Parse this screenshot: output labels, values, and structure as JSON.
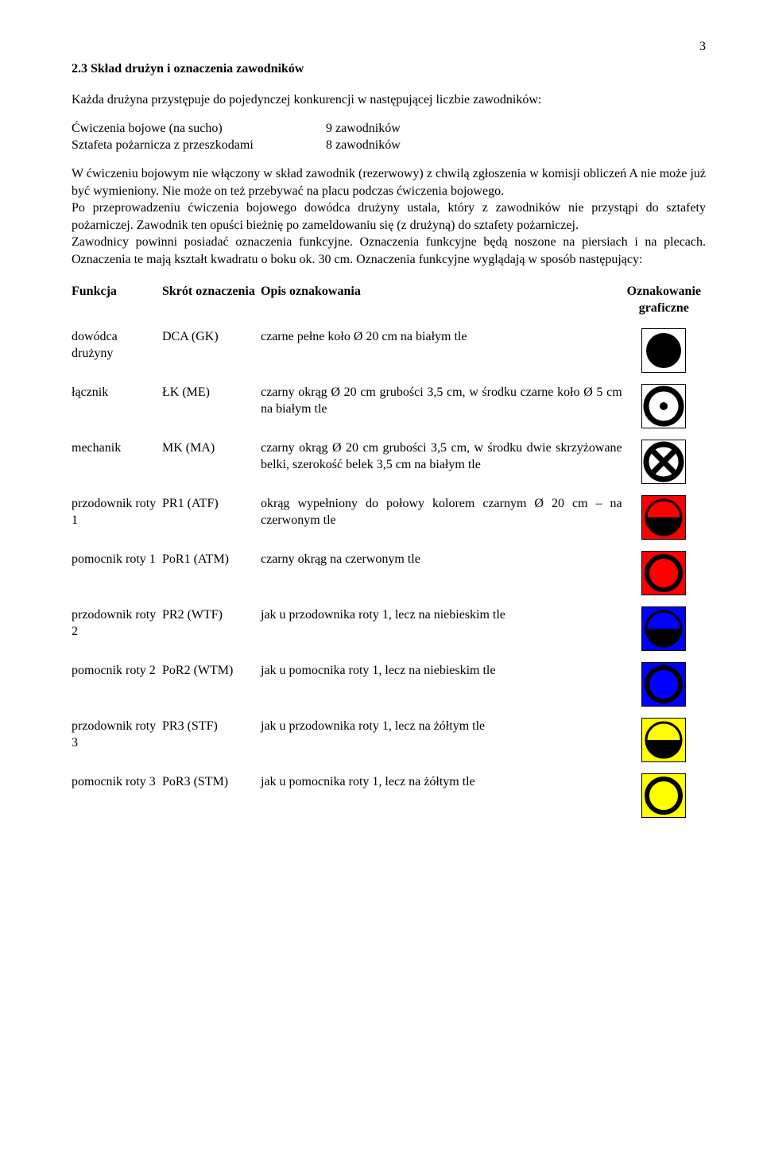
{
  "page_number": "3",
  "section_title": "2.3 Skład drużyn i oznaczenia zawodników",
  "intro": "Każda drużyna przystępuje do pojedynczej konkurencji w następującej liczbie zawodników:",
  "exercises": [
    {
      "name": "Ćwiczenia bojowe (na sucho)",
      "count": "9 zawodników"
    },
    {
      "name": "Sztafeta pożarnicza z przeszkodami",
      "count": "8 zawodników"
    }
  ],
  "body": "W ćwiczeniu bojowym nie włączony w skład zawodnik (rezerwowy) z chwilą zgłoszenia w komisji obliczeń A nie może już być wymieniony. Nie może on też przebywać na placu podczas ćwiczenia bojowego.\nPo przeprowadzeniu ćwiczenia bojowego dowódca drużyny ustala, który z zawodników nie przystąpi do sztafety pożarniczej. Zawodnik ten opuści bieżnię po zameldowaniu się (z drużyną) do sztafety pożarniczej.\nZawodnicy powinni posiadać oznaczenia funkcyjne. Oznaczenia funkcyjne będą noszone na piersiach i na plecach. Oznaczenia te mają kształt kwadratu o boku ok. 30 cm. Oznaczenia funkcyjne wyglądają w sposób następujący:",
  "headers": {
    "func": "Funkcja",
    "abbr": "Skrót oznaczenia",
    "desc": "Opis oznakowania",
    "icon": "Oznakowanie graficzne"
  },
  "rows": [
    {
      "func": "dowódca drużyny",
      "abbr": "DCA (GK)",
      "desc": "czarne pełne koło Ø 20 cm na białym tle",
      "icon": {
        "bg": "#ffffff",
        "type": "full-circle",
        "fill": "#000000"
      }
    },
    {
      "func": "łącznik",
      "abbr": "ŁK (ME)",
      "desc": "czarny okrąg Ø 20 cm grubości 3,5 cm, w środku czarne koło Ø 5 cm na białym tle",
      "icon": {
        "bg": "#ffffff",
        "type": "ring-dot",
        "ring": "#000000",
        "dot": "#000000"
      }
    },
    {
      "func": "mechanik",
      "abbr": "MK (MA)",
      "desc": "czarny okrąg Ø 20 cm grubości 3,5 cm, w środku dwie skrzyżowane belki, szerokość belek 3,5 cm na białym tle",
      "icon": {
        "bg": "#ffffff",
        "type": "ring-x",
        "ring": "#000000",
        "cross": "#000000"
      }
    },
    {
      "func": "przodownik roty 1",
      "abbr": "PR1 (ATF)",
      "desc": "okrąg wypełniony do połowy kolorem czarnym Ø 20 cm – na czerwonym tle",
      "icon": {
        "bg": "#ff0000",
        "type": "half-circle",
        "top": "#ff0000",
        "bottom": "#000000",
        "stroke": "#000000"
      }
    },
    {
      "func": "pomocnik roty 1",
      "abbr": "PoR1 (ATM)",
      "desc": "czarny okrąg na czerwonym tle",
      "icon": {
        "bg": "#ff0000",
        "type": "ring",
        "ring": "#000000",
        "inner": "#ff0000"
      }
    },
    {
      "func": "przodownik roty 2",
      "abbr": "PR2 (WTF)",
      "desc": "jak u przodownika roty 1, lecz na niebieskim tle",
      "icon": {
        "bg": "#0000ff",
        "type": "half-circle",
        "top": "#0000ff",
        "bottom": "#000000",
        "stroke": "#000000"
      }
    },
    {
      "func": "pomocnik roty 2",
      "abbr": "PoR2 (WTM)",
      "desc": "jak u pomocnika roty 1, lecz na niebieskim tle",
      "icon": {
        "bg": "#0000ff",
        "type": "ring",
        "ring": "#000000",
        "inner": "#0000ff"
      }
    },
    {
      "func": "przodownik roty 3",
      "abbr": "PR3 (STF)",
      "desc": "jak u przodownika roty 1, lecz na żółtym tle",
      "icon": {
        "bg": "#ffff00",
        "type": "half-circle",
        "top": "#ffff00",
        "bottom": "#000000",
        "stroke": "#000000"
      }
    },
    {
      "func": "pomocnik roty 3",
      "abbr": "PoR3 (STM)",
      "desc": "jak u pomocnika roty 1, lecz na żółtym tle",
      "icon": {
        "bg": "#ffff00",
        "type": "ring",
        "ring": "#000000",
        "inner": "#ffff00"
      }
    }
  ]
}
